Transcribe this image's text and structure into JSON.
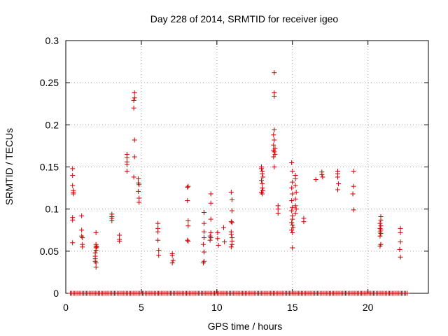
{
  "chart_data": {
    "type": "scatter",
    "title": "Day 228 of 2014, SRMTID for receiver igeo",
    "xlabel": "GPS time / hours",
    "ylabel": "SRMTID / TECUs",
    "xlim": [
      0,
      24
    ],
    "ylim": [
      0,
      0.3
    ],
    "xticks": [
      0,
      5,
      10,
      15,
      20
    ],
    "xtick_labels": [
      "0",
      "5",
      "10",
      "15",
      "20"
    ],
    "yticks": [
      0,
      0.05,
      0.1,
      0.15,
      0.2,
      0.25,
      0.3
    ],
    "ytick_labels": [
      "0",
      "0.05",
      "0.1",
      "0.15",
      "0.2",
      "0.25",
      "0.3"
    ],
    "grid": true,
    "marker": "+",
    "color": "#cc0000",
    "baseline_points": {
      "y": 0,
      "x_start": 0.3,
      "x_end": 22.6,
      "count": 230
    },
    "series": [
      {
        "name": "SRMTID",
        "points": [
          [
            0.45,
            0.148
          ],
          [
            0.45,
            0.14
          ],
          [
            0.45,
            0.128
          ],
          [
            0.5,
            0.122
          ],
          [
            0.5,
            0.118
          ],
          [
            0.5,
            0.12
          ],
          [
            0.45,
            0.09
          ],
          [
            0.45,
            0.087
          ],
          [
            0.45,
            0.06
          ],
          [
            1.05,
            0.092
          ],
          [
            1.05,
            0.075
          ],
          [
            1.05,
            0.068
          ],
          [
            1.1,
            0.066
          ],
          [
            1.1,
            0.058
          ],
          [
            1.1,
            0.055
          ],
          [
            2.0,
            0.072
          ],
          [
            2.0,
            0.058
          ],
          [
            2.0,
            0.056
          ],
          [
            2.0,
            0.054
          ],
          [
            2.0,
            0.051
          ],
          [
            1.95,
            0.048
          ],
          [
            1.95,
            0.044
          ],
          [
            1.95,
            0.041
          ],
          [
            1.95,
            0.038
          ],
          [
            2.0,
            0.036
          ],
          [
            2.0,
            0.031
          ],
          [
            2.05,
            0.055
          ],
          [
            3.05,
            0.094
          ],
          [
            3.05,
            0.091
          ],
          [
            3.05,
            0.089
          ],
          [
            3.05,
            0.086
          ],
          [
            3.55,
            0.069
          ],
          [
            3.55,
            0.064
          ],
          [
            3.55,
            0.062
          ],
          [
            4.05,
            0.165
          ],
          [
            4.05,
            0.161
          ],
          [
            4.05,
            0.156
          ],
          [
            4.05,
            0.153
          ],
          [
            4.05,
            0.145
          ],
          [
            4.55,
            0.238
          ],
          [
            4.55,
            0.232
          ],
          [
            4.5,
            0.229
          ],
          [
            4.5,
            0.22
          ],
          [
            4.55,
            0.182
          ],
          [
            4.55,
            0.162
          ],
          [
            4.5,
            0.138
          ],
          [
            4.8,
            0.136
          ],
          [
            4.8,
            0.131
          ],
          [
            4.85,
            0.129
          ],
          [
            4.8,
            0.121
          ],
          [
            4.85,
            0.113
          ],
          [
            4.85,
            0.108
          ],
          [
            6.1,
            0.083
          ],
          [
            6.1,
            0.077
          ],
          [
            6.1,
            0.073
          ],
          [
            6.1,
            0.063
          ],
          [
            6.15,
            0.051
          ],
          [
            6.15,
            0.045
          ],
          [
            7.05,
            0.047
          ],
          [
            7.05,
            0.045
          ],
          [
            7.1,
            0.039
          ],
          [
            7.05,
            0.036
          ],
          [
            8.1,
            0.127
          ],
          [
            8.05,
            0.126
          ],
          [
            8.05,
            0.11
          ],
          [
            8.1,
            0.086
          ],
          [
            8.1,
            0.08
          ],
          [
            8.05,
            0.063
          ],
          [
            8.1,
            0.062
          ],
          [
            9.15,
            0.096
          ],
          [
            9.15,
            0.083
          ],
          [
            9.15,
            0.073
          ],
          [
            9.15,
            0.066
          ],
          [
            9.1,
            0.058
          ],
          [
            9.15,
            0.049
          ],
          [
            9.15,
            0.038
          ],
          [
            9.1,
            0.036
          ],
          [
            9.6,
            0.118
          ],
          [
            9.6,
            0.107
          ],
          [
            9.6,
            0.088
          ],
          [
            9.6,
            0.072
          ],
          [
            9.55,
            0.068
          ],
          [
            9.6,
            0.066
          ],
          [
            9.55,
            0.063
          ],
          [
            10.05,
            0.072
          ],
          [
            10.05,
            0.065
          ],
          [
            10.1,
            0.057
          ],
          [
            10.45,
            0.078
          ],
          [
            10.5,
            0.061
          ],
          [
            10.95,
            0.12
          ],
          [
            11.0,
            0.111
          ],
          [
            11.0,
            0.098
          ],
          [
            10.95,
            0.085
          ],
          [
            11.0,
            0.084
          ],
          [
            10.95,
            0.073
          ],
          [
            10.95,
            0.07
          ],
          [
            11.0,
            0.066
          ],
          [
            11.0,
            0.062
          ],
          [
            11.0,
            0.058
          ],
          [
            10.95,
            0.055
          ],
          [
            12.95,
            0.15
          ],
          [
            12.95,
            0.148
          ],
          [
            13.0,
            0.145
          ],
          [
            13.0,
            0.142
          ],
          [
            13.05,
            0.138
          ],
          [
            12.95,
            0.134
          ],
          [
            13.0,
            0.13
          ],
          [
            13.0,
            0.125
          ],
          [
            13.05,
            0.122
          ],
          [
            12.95,
            0.12
          ],
          [
            13.0,
            0.118
          ],
          [
            13.8,
            0.262
          ],
          [
            13.8,
            0.238
          ],
          [
            13.8,
            0.234
          ],
          [
            13.8,
            0.194
          ],
          [
            13.75,
            0.188
          ],
          [
            13.8,
            0.182
          ],
          [
            13.75,
            0.176
          ],
          [
            13.85,
            0.172
          ],
          [
            13.75,
            0.17
          ],
          [
            13.8,
            0.168
          ],
          [
            13.85,
            0.165
          ],
          [
            13.75,
            0.162
          ],
          [
            13.8,
            0.15
          ],
          [
            14.05,
            0.104
          ],
          [
            14.05,
            0.1
          ],
          [
            14.05,
            0.095
          ],
          [
            14.95,
            0.155
          ],
          [
            15.0,
            0.145
          ],
          [
            15.0,
            0.132
          ],
          [
            14.95,
            0.125
          ],
          [
            15.0,
            0.118
          ],
          [
            14.95,
            0.11
          ],
          [
            15.0,
            0.102
          ],
          [
            14.95,
            0.098
          ],
          [
            15.0,
            0.092
          ],
          [
            15.0,
            0.088
          ],
          [
            14.95,
            0.084
          ],
          [
            15.0,
            0.081
          ],
          [
            15.05,
            0.078
          ],
          [
            14.95,
            0.075
          ],
          [
            15.0,
            0.072
          ],
          [
            15.0,
            0.054
          ],
          [
            15.2,
            0.14
          ],
          [
            15.2,
            0.136
          ],
          [
            15.2,
            0.128
          ],
          [
            15.25,
            0.12
          ],
          [
            15.2,
            0.112
          ],
          [
            15.2,
            0.104
          ],
          [
            15.25,
            0.1
          ],
          [
            15.2,
            0.095
          ],
          [
            15.75,
            0.089
          ],
          [
            15.75,
            0.085
          ],
          [
            16.55,
            0.135
          ],
          [
            16.95,
            0.144
          ],
          [
            16.95,
            0.141
          ],
          [
            17.0,
            0.138
          ],
          [
            18.0,
            0.145
          ],
          [
            18.0,
            0.142
          ],
          [
            18.0,
            0.138
          ],
          [
            18.05,
            0.13
          ],
          [
            18.0,
            0.123
          ],
          [
            19.05,
            0.145
          ],
          [
            19.05,
            0.127
          ],
          [
            19.0,
            0.118
          ],
          [
            19.05,
            0.099
          ],
          [
            20.85,
            0.091
          ],
          [
            20.85,
            0.087
          ],
          [
            20.8,
            0.083
          ],
          [
            20.85,
            0.08
          ],
          [
            20.8,
            0.077
          ],
          [
            20.85,
            0.075
          ],
          [
            20.8,
            0.073
          ],
          [
            20.85,
            0.071
          ],
          [
            20.8,
            0.068
          ],
          [
            20.85,
            0.058
          ],
          [
            20.8,
            0.056
          ],
          [
            22.15,
            0.077
          ],
          [
            22.15,
            0.072
          ],
          [
            22.15,
            0.061
          ],
          [
            22.1,
            0.052
          ],
          [
            22.15,
            0.043
          ]
        ]
      }
    ]
  }
}
